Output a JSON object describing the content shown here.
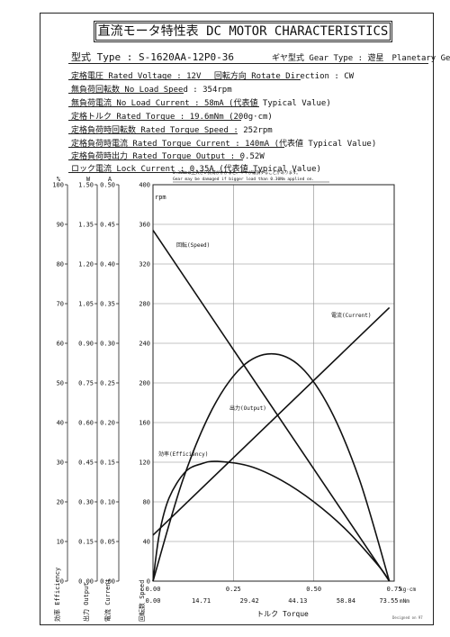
{
  "title": "直流モータ特性表 DC MOTOR CHARACTERISTICS",
  "type_row": {
    "type_label": "型式 Type",
    "type_value": "S-1620AA-12P0-36",
    "gear_label": "ギヤ型式 Gear Type",
    "gear_value": "遊星　Planetary Gear"
  },
  "specs": [
    {
      "label": "定格電圧 Rated Voltage",
      "value": "12V",
      "extra_label": "回転方向 Rotate Direction",
      "extra_value": "CW"
    },
    {
      "label": "無負荷回転数 No Load Speed",
      "value": "354rpm"
    },
    {
      "label": "無負荷電流 No Load Current",
      "value": "58mA (代表値 Typical Value)"
    },
    {
      "label": "定格トルク Rated Torque",
      "value": "19.6mNm (200g·cm)"
    },
    {
      "label": "定格負荷時回転数 Rated Torque Speed",
      "value": "252rpm"
    },
    {
      "label": "定格負荷時電流 Rated Torque Current",
      "value": "140mA (代表値 Typical Value)"
    },
    {
      "label": "定格負荷時出力 Rated Torque Output",
      "value": "0.52W"
    },
    {
      "label": "ロック電流 Lock Current",
      "value": "0.35A (代表値 Typical Value)"
    }
  ],
  "warning": {
    "jp": "0.30Nm以上大きい負荷がかかると、ギヤが破損することがあります。",
    "en": "Gear may be damaged if bigger load than 0.30Nm applied on."
  },
  "signature": "Designed on 97",
  "chart_data": {
    "type": "line",
    "x_primary": {
      "unit": "kg·cm",
      "ticks": [
        0.0,
        0.25,
        0.5,
        0.75
      ],
      "max": 0.75
    },
    "x_secondary": {
      "unit": "mNm",
      "ticks": [
        "0.00",
        "14.71",
        "29.42",
        "44.13",
        "58.84",
        "73.55"
      ]
    },
    "xlabel": "トルク Torque",
    "axes": [
      {
        "key": "efficiency",
        "unit": "%",
        "label": "効率 Efficiency",
        "max": 100,
        "ticks": [
          "0",
          "10",
          "20",
          "30",
          "40",
          "50",
          "60",
          "70",
          "80",
          "90",
          "100"
        ]
      },
      {
        "key": "output",
        "unit": "W",
        "label": "出力 Output",
        "max": 1.5,
        "ticks": [
          "0.00",
          "0.15",
          "0.30",
          "0.45",
          "0.60",
          "0.75",
          "0.90",
          "1.05",
          "1.20",
          "1.35",
          "1.50"
        ]
      },
      {
        "key": "current",
        "unit": "A",
        "label": "電流 Current",
        "max": 0.5,
        "ticks": [
          "0.00",
          "0.05",
          "0.10",
          "0.15",
          "0.20",
          "0.25",
          "0.30",
          "0.35",
          "0.40",
          "0.45",
          "0.50"
        ]
      },
      {
        "key": "speed",
        "unit": "rpm",
        "label": "回転数 Speed",
        "max": 400,
        "ticks": [
          "0",
          "40",
          "80",
          "120",
          "160",
          "200",
          "240",
          "280",
          "320",
          "360",
          "400"
        ]
      }
    ],
    "series": [
      {
        "name": "回転(Speed)",
        "axis": "speed",
        "x": [
          0,
          0.735
        ],
        "y": [
          354,
          0
        ]
      },
      {
        "name": "電流(Current)",
        "axis": "current",
        "x": [
          0,
          0.735
        ],
        "y": [
          0.058,
          0.345
        ]
      },
      {
        "name": "出力(Output)",
        "axis": "output",
        "x": [
          0,
          0.092,
          0.184,
          0.276,
          0.368,
          0.46,
          0.551,
          0.643,
          0.735
        ],
        "y": [
          0,
          0.38,
          0.65,
          0.81,
          0.86,
          0.81,
          0.65,
          0.38,
          0
        ]
      },
      {
        "name": "効率(Efficiency)",
        "axis": "efficiency",
        "x": [
          0,
          0.02,
          0.05,
          0.1,
          0.15,
          0.2,
          0.3,
          0.4,
          0.5,
          0.6,
          0.7,
          0.735
        ],
        "y": [
          0,
          12,
          21,
          27.5,
          29.6,
          30.2,
          29,
          25.4,
          20,
          13,
          4,
          0
        ]
      }
    ],
    "grid": true
  }
}
